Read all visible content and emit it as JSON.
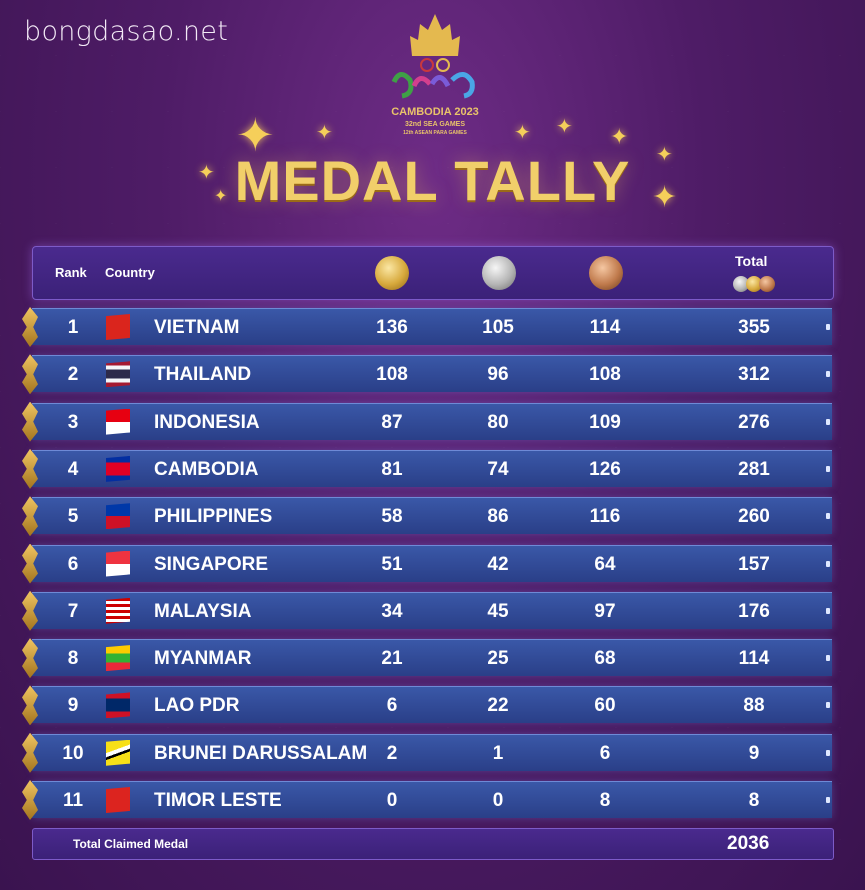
{
  "watermark": "bongdasao.net",
  "logo": {
    "line1": "CAMBODIA 2023",
    "line2": "32nd SEA GAMES",
    "line3": "12th ASEAN PARA GAMES"
  },
  "title": "MEDAL TALLY",
  "header": {
    "rank": "Rank",
    "country": "Country",
    "total": "Total",
    "gold_icon": "gold-medal-icon",
    "silver_icon": "silver-medal-icon",
    "bronze_icon": "bronze-medal-icon"
  },
  "colors": {
    "background": "#4e1c66",
    "row": "#2a3f88",
    "title": "#f1cf6a"
  },
  "rows": [
    {
      "rank": "1",
      "country": "VIETNAM",
      "gold": "136",
      "silver": "105",
      "bronze": "114",
      "total": "355",
      "flag": "vietnam-flag-icon"
    },
    {
      "rank": "2",
      "country": "THAILAND",
      "gold": "108",
      "silver": "96",
      "bronze": "108",
      "total": "312",
      "flag": "thailand-flag-icon"
    },
    {
      "rank": "3",
      "country": "INDONESIA",
      "gold": "87",
      "silver": "80",
      "bronze": "109",
      "total": "276",
      "flag": "indonesia-flag-icon"
    },
    {
      "rank": "4",
      "country": "CAMBODIA",
      "gold": "81",
      "silver": "74",
      "bronze": "126",
      "total": "281",
      "flag": "cambodia-flag-icon"
    },
    {
      "rank": "5",
      "country": "PHILIPPINES",
      "gold": "58",
      "silver": "86",
      "bronze": "116",
      "total": "260",
      "flag": "philippines-flag-icon"
    },
    {
      "rank": "6",
      "country": "SINGAPORE",
      "gold": "51",
      "silver": "42",
      "bronze": "64",
      "total": "157",
      "flag": "singapore-flag-icon"
    },
    {
      "rank": "7",
      "country": "MALAYSIA",
      "gold": "34",
      "silver": "45",
      "bronze": "97",
      "total": "176",
      "flag": "malaysia-flag-icon"
    },
    {
      "rank": "8",
      "country": "MYANMAR",
      "gold": "21",
      "silver": "25",
      "bronze": "68",
      "total": "114",
      "flag": "myanmar-flag-icon"
    },
    {
      "rank": "9",
      "country": "LAO PDR",
      "gold": "6",
      "silver": "22",
      "bronze": "60",
      "total": "88",
      "flag": "laos-flag-icon"
    },
    {
      "rank": "10",
      "country": "BRUNEI DARUSSALAM",
      "gold": "2",
      "silver": "1",
      "bronze": "6",
      "total": "9",
      "flag": "brunei-flag-icon"
    },
    {
      "rank": "11",
      "country": "TIMOR LESTE",
      "gold": "0",
      "silver": "0",
      "bronze": "8",
      "total": "8",
      "flag": "timor-leste-flag-icon"
    }
  ],
  "footer": {
    "label": "Total Claimed Medal",
    "value": "2036"
  }
}
